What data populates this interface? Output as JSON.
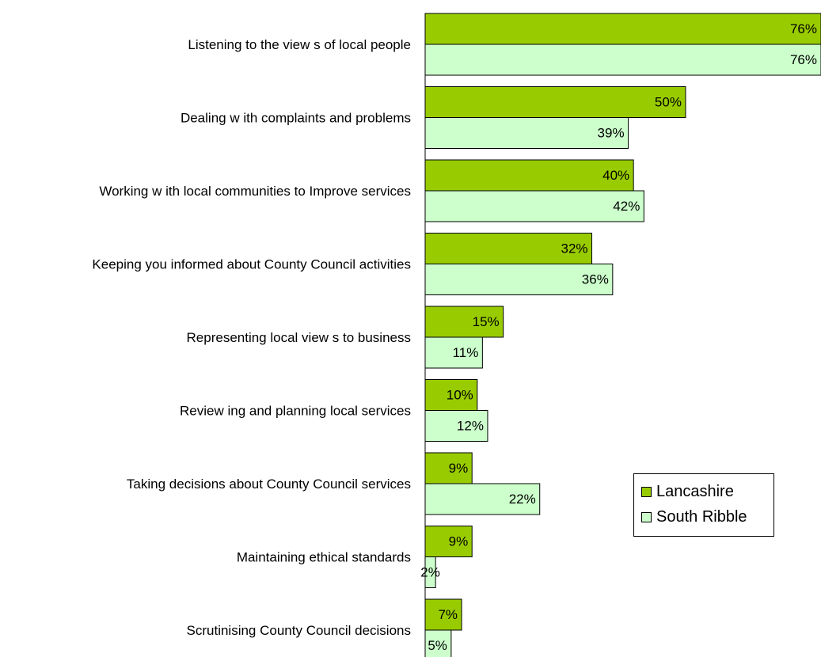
{
  "chart_data": {
    "type": "bar",
    "orientation": "horizontal",
    "categories": [
      "Listening to the view s of local people",
      "Dealing w ith complaints and problems",
      "Working w ith local communities to Improve services",
      "Keeping you informed about County Council activities",
      "Representing local view s to business",
      "Review ing and planning local services",
      "Taking decisions about County Council services",
      "Maintaining ethical standards",
      "Scrutinising County Council decisions"
    ],
    "series": [
      {
        "name": "Lancashire",
        "values": [
          76,
          50,
          40,
          32,
          15,
          10,
          9,
          9,
          7
        ],
        "labels": [
          "76%",
          "50%",
          "40%",
          "32%",
          "15%",
          "10%",
          "9%",
          "9%",
          "7%"
        ],
        "color": "#99cc00"
      },
      {
        "name": "South Ribble",
        "values": [
          76,
          39,
          42,
          36,
          11,
          12,
          22,
          2,
          5
        ],
        "labels": [
          "76%",
          "39%",
          "42%",
          "36%",
          "11%",
          "12%",
          "22%",
          "2%",
          "5%"
        ],
        "color": "#ccffcc"
      }
    ],
    "xlim": [
      0,
      76
    ],
    "grid": false,
    "legend": "right"
  }
}
